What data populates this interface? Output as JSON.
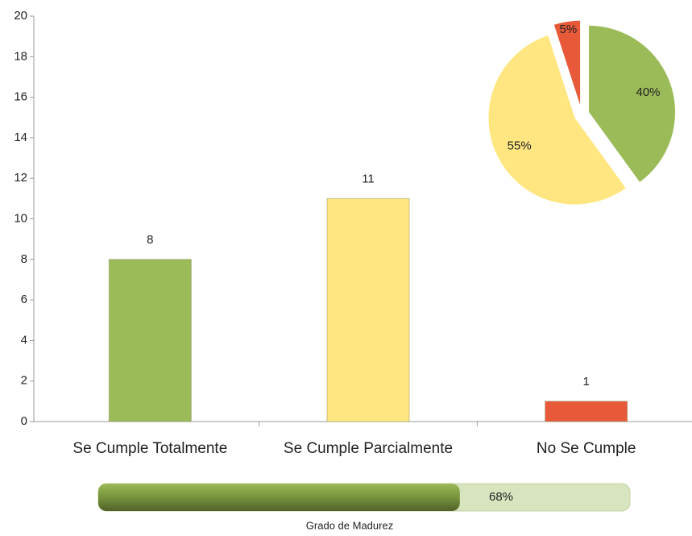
{
  "chart_data": [
    {
      "type": "bar",
      "categories": [
        "Se Cumple Totalmente",
        "Se Cumple Parcialmente",
        "No Se Cumple"
      ],
      "values": [
        8,
        11,
        1
      ],
      "colors": [
        "#9bbb59",
        "#ffe680",
        "#e8593a"
      ],
      "ylim": [
        0,
        20
      ],
      "yticks": [
        0,
        2,
        4,
        6,
        8,
        10,
        12,
        14,
        16,
        18,
        20
      ]
    },
    {
      "type": "pie",
      "values": [
        40,
        55,
        5
      ],
      "value_labels": [
        "40%",
        "55%",
        "5%"
      ],
      "colors": [
        "#9bbb59",
        "#ffe680",
        "#e8593a"
      ]
    },
    {
      "type": "progress",
      "title": "Grado de Madurez",
      "value": 68,
      "value_label": "68%",
      "xlim": [
        0,
        100
      ],
      "color": "#77933c",
      "track_color": "#d7e4bd"
    }
  ]
}
